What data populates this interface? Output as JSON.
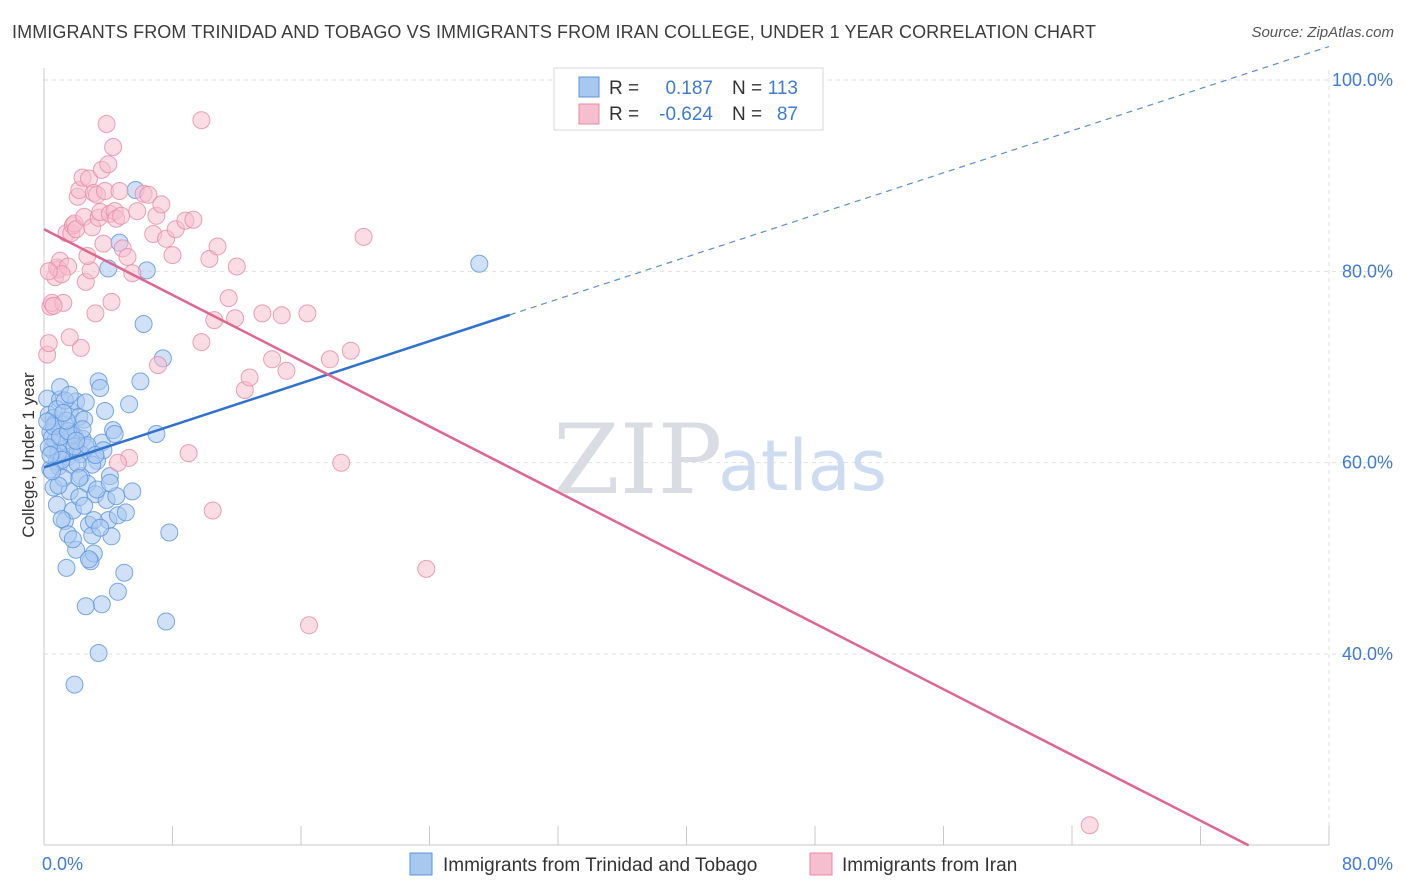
{
  "title": "IMMIGRANTS FROM TRINIDAD AND TOBAGO VS IMMIGRANTS FROM IRAN COLLEGE, UNDER 1 YEAR CORRELATION CHART",
  "source": "Source: ZipAtlas.com",
  "watermark": {
    "zip": "ZIP",
    "atlas": "atlas"
  },
  "stats": {
    "r_label": "R =",
    "n_label": "N =",
    "rows": [
      {
        "r": "0.187",
        "n": "113"
      },
      {
        "r": "-0.624",
        "n": "87"
      }
    ]
  },
  "chart_data": {
    "type": "scatter",
    "title": "IMMIGRANTS FROM TRINIDAD AND TOBAGO VS IMMIGRANTS FROM IRAN COLLEGE, UNDER 1 YEAR CORRELATION CHART",
    "xlabel": "",
    "ylabel": "College, Under 1 year",
    "xlim": [
      0,
      80
    ],
    "ylim": [
      20,
      104
    ],
    "x_tick_labels": [
      "0.0%",
      "80.0%"
    ],
    "y_ticks": [
      {
        "value": 100,
        "label": "100.0%"
      },
      {
        "value": 80,
        "label": "80.0%"
      },
      {
        "value": 60,
        "label": "60.0%"
      },
      {
        "value": 40,
        "label": "40.0%"
      }
    ],
    "grid": true,
    "legend": [
      "Immigrants from Trinidad and Tobago",
      "Immigrants from Iran"
    ],
    "colors": {
      "series1_fill": "#a9c8f0",
      "series1_stroke": "#5b93de",
      "series1_line": "#2f72cf",
      "series2_fill": "#f6bfd0",
      "series2_stroke": "#e889a8",
      "series2_line": "#e0668f",
      "grid": "#e1e1e1",
      "tick_text": "#3f7bd6"
    },
    "series": [
      {
        "name": "Immigrants from Trinidad and Tobago",
        "R": 0.187,
        "N": 113,
        "trend": {
          "x0": 0,
          "y0": 59.5,
          "x1": 80,
          "y1": 103.5,
          "solid_until_x": 29
        },
        "points": [
          [
            0.2,
            66.7
          ],
          [
            0.3,
            65.0
          ],
          [
            0.4,
            63.2
          ],
          [
            0.5,
            61.3
          ],
          [
            0.6,
            64.7
          ],
          [
            0.7,
            62.3
          ],
          [
            0.8,
            60.1
          ],
          [
            0.9,
            59.6
          ],
          [
            1.0,
            66.6
          ],
          [
            1.1,
            63.6
          ],
          [
            0.4,
            59.3
          ],
          [
            0.6,
            57.4
          ],
          [
            0.8,
            55.6
          ],
          [
            1.2,
            61.4
          ],
          [
            1.3,
            64.0
          ],
          [
            1.4,
            62.1
          ],
          [
            1.5,
            60.6
          ],
          [
            1.0,
            67.9
          ],
          [
            1.6,
            65.5
          ],
          [
            1.8,
            63.0
          ],
          [
            1.7,
            59.8
          ],
          [
            1.9,
            62.8
          ],
          [
            2.0,
            66.4
          ],
          [
            2.1,
            61.2
          ],
          [
            2.2,
            64.8
          ],
          [
            1.3,
            53.9
          ],
          [
            1.5,
            52.5
          ],
          [
            1.6,
            57.0
          ],
          [
            1.4,
            49.0
          ],
          [
            1.8,
            55.0
          ],
          [
            2.0,
            50.9
          ],
          [
            2.3,
            58.6
          ],
          [
            2.4,
            62.5
          ],
          [
            2.5,
            64.5
          ],
          [
            2.6,
            61.6
          ],
          [
            2.7,
            57.8
          ],
          [
            2.8,
            53.5
          ],
          [
            2.2,
            56.4
          ],
          [
            2.9,
            49.7
          ],
          [
            3.0,
            52.4
          ],
          [
            3.1,
            50.5
          ],
          [
            3.2,
            56.7
          ],
          [
            3.3,
            60.2
          ],
          [
            3.4,
            68.5
          ],
          [
            3.5,
            67.8
          ],
          [
            3.6,
            62.1
          ],
          [
            3.7,
            61.3
          ],
          [
            3.8,
            65.4
          ],
          [
            3.9,
            56.1
          ],
          [
            4.0,
            54.0
          ],
          [
            4.1,
            58.6
          ],
          [
            4.2,
            52.3
          ],
          [
            4.3,
            63.4
          ],
          [
            4.4,
            63.0
          ],
          [
            4.5,
            56.5
          ],
          [
            4.6,
            54.5
          ],
          [
            4.0,
            80.3
          ],
          [
            4.7,
            83.0
          ],
          [
            5.0,
            48.5
          ],
          [
            5.1,
            54.8
          ],
          [
            5.3,
            66.1
          ],
          [
            5.5,
            57.0
          ],
          [
            5.7,
            88.5
          ],
          [
            6.0,
            68.5
          ],
          [
            6.2,
            74.5
          ],
          [
            6.4,
            80.1
          ],
          [
            7.0,
            63.0
          ],
          [
            7.4,
            70.9
          ],
          [
            7.6,
            43.4
          ],
          [
            7.8,
            52.7
          ],
          [
            3.6,
            45.2
          ],
          [
            3.4,
            40.1
          ],
          [
            2.6,
            45.0
          ],
          [
            1.9,
            36.8
          ],
          [
            4.6,
            46.5
          ],
          [
            2.8,
            49.9
          ],
          [
            3.1,
            54.0
          ],
          [
            0.5,
            62.6
          ],
          [
            0.7,
            64.1
          ],
          [
            0.9,
            61.1
          ],
          [
            1.1,
            60.3
          ],
          [
            1.2,
            58.4
          ],
          [
            1.7,
            62.9
          ],
          [
            2.3,
            60.9
          ],
          [
            2.5,
            55.5
          ],
          [
            3.0,
            59.8
          ],
          [
            0.3,
            61.6
          ],
          [
            0.6,
            63.8
          ],
          [
            0.8,
            65.6
          ],
          [
            1.0,
            62.7
          ],
          [
            1.5,
            63.3
          ],
          [
            1.9,
            61.7
          ],
          [
            2.1,
            59.9
          ],
          [
            2.4,
            63.5
          ],
          [
            2.7,
            61.8
          ],
          [
            0.2,
            64.3
          ],
          [
            0.4,
            60.8
          ],
          [
            1.3,
            66.5
          ],
          [
            1.6,
            67.1
          ],
          [
            2.2,
            58.4
          ],
          [
            3.3,
            57.2
          ],
          [
            3.5,
            53.2
          ],
          [
            4.1,
            57.9
          ],
          [
            0.9,
            57.6
          ],
          [
            1.4,
            64.4
          ],
          [
            2.0,
            62.3
          ],
          [
            0.5,
            59.1
          ],
          [
            1.1,
            54.1
          ],
          [
            1.8,
            52.0
          ],
          [
            2.6,
            66.3
          ],
          [
            3.2,
            60.8
          ],
          [
            1.2,
            65.2
          ],
          [
            27.1,
            80.8
          ]
        ]
      },
      {
        "name": "Immigrants from Iran",
        "R": -0.624,
        "N": 87,
        "trend": {
          "x0": 0,
          "y0": 84.4,
          "x1": 75,
          "y1": 20.0
        },
        "points": [
          [
            0.2,
            71.3
          ],
          [
            0.3,
            72.5
          ],
          [
            0.4,
            76.3
          ],
          [
            0.5,
            76.7
          ],
          [
            0.7,
            79.4
          ],
          [
            0.8,
            80.4
          ],
          [
            0.9,
            80.2
          ],
          [
            1.0,
            81.1
          ],
          [
            1.2,
            76.7
          ],
          [
            1.4,
            84.0
          ],
          [
            1.5,
            80.5
          ],
          [
            1.7,
            84.0
          ],
          [
            1.8,
            84.8
          ],
          [
            1.9,
            85.0
          ],
          [
            2.0,
            84.4
          ],
          [
            2.1,
            87.8
          ],
          [
            2.2,
            88.5
          ],
          [
            2.4,
            89.8
          ],
          [
            2.5,
            85.7
          ],
          [
            2.6,
            78.9
          ],
          [
            2.8,
            89.7
          ],
          [
            2.9,
            80.1
          ],
          [
            3.0,
            84.6
          ],
          [
            3.1,
            88.2
          ],
          [
            3.3,
            88.0
          ],
          [
            3.4,
            85.6
          ],
          [
            3.5,
            86.2
          ],
          [
            3.6,
            90.6
          ],
          [
            3.7,
            82.9
          ],
          [
            3.8,
            88.4
          ],
          [
            3.9,
            95.4
          ],
          [
            4.0,
            91.2
          ],
          [
            4.1,
            86.0
          ],
          [
            4.2,
            76.8
          ],
          [
            4.3,
            93.0
          ],
          [
            4.4,
            86.3
          ],
          [
            4.5,
            85.5
          ],
          [
            4.7,
            88.4
          ],
          [
            4.8,
            85.8
          ],
          [
            4.9,
            82.4
          ],
          [
            5.2,
            81.5
          ],
          [
            5.5,
            79.8
          ],
          [
            5.8,
            86.3
          ],
          [
            6.2,
            88.1
          ],
          [
            6.5,
            88.0
          ],
          [
            6.8,
            83.9
          ],
          [
            7.0,
            85.8
          ],
          [
            7.3,
            87.0
          ],
          [
            7.6,
            83.4
          ],
          [
            8.0,
            81.7
          ],
          [
            8.2,
            84.4
          ],
          [
            8.8,
            85.3
          ],
          [
            9.3,
            85.4
          ],
          [
            9.8,
            95.8
          ],
          [
            10.3,
            81.3
          ],
          [
            10.8,
            82.6
          ],
          [
            11.5,
            77.2
          ],
          [
            11.9,
            75.1
          ],
          [
            12.5,
            67.6
          ],
          [
            12.8,
            68.9
          ],
          [
            13.6,
            75.6
          ],
          [
            14.2,
            70.8
          ],
          [
            14.8,
            75.4
          ],
          [
            15.1,
            69.6
          ],
          [
            16.4,
            75.6
          ],
          [
            17.8,
            70.8
          ],
          [
            19.1,
            71.7
          ],
          [
            19.9,
            83.6
          ],
          [
            18.5,
            60.0
          ],
          [
            16.5,
            43.0
          ],
          [
            23.8,
            48.9
          ],
          [
            10.5,
            55.0
          ],
          [
            9.0,
            61.0
          ],
          [
            5.3,
            60.5
          ],
          [
            4.6,
            60.0
          ],
          [
            2.3,
            72.0
          ],
          [
            1.6,
            73.1
          ],
          [
            3.2,
            75.6
          ],
          [
            1.1,
            79.7
          ],
          [
            0.6,
            76.4
          ],
          [
            0.3,
            80.0
          ],
          [
            2.7,
            81.6
          ],
          [
            7.1,
            70.2
          ],
          [
            9.8,
            72.6
          ],
          [
            10.6,
            74.9
          ],
          [
            12.0,
            80.5
          ],
          [
            65.1,
            22.1
          ]
        ]
      }
    ]
  }
}
